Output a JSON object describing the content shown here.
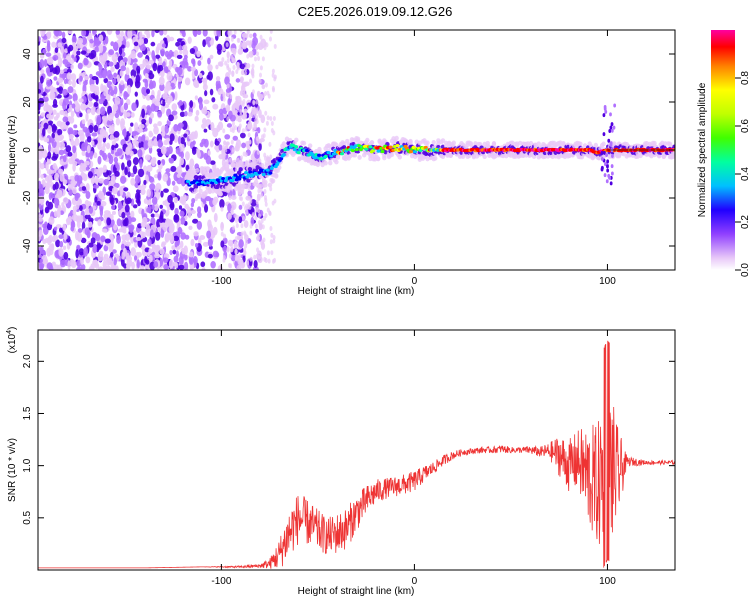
{
  "title": "C2E5.2026.019.09.12.G26",
  "chart_data": [
    {
      "type": "heatmap",
      "title": "C2E5.2026.019.09.12.G26",
      "xlabel": "Height of straight line (km)",
      "ylabel": "Frequency (Hz)",
      "xlim": [
        -195,
        135
      ],
      "ylim": [
        -50,
        50
      ],
      "xticks": [
        -100,
        0,
        100
      ],
      "xtick_labels": [
        "-100",
        "0",
        "100"
      ],
      "yticks": [
        -40,
        -20,
        0,
        20,
        40
      ],
      "ytick_labels": [
        "-40",
        "-20",
        "0",
        "20",
        "40"
      ],
      "colorbar": {
        "label": "Normalized spectral amplitude",
        "range": [
          0,
          1
        ],
        "ticks": [
          0.0,
          0.2,
          0.4,
          0.6,
          0.8
        ],
        "tick_labels": [
          "0.0",
          "0.2",
          "0.4",
          "0.6",
          "0.8"
        ]
      },
      "ridge": {
        "x": [
          -115,
          -105,
          -95,
          -85,
          -75,
          -70,
          -65,
          -60,
          -50,
          -40,
          -30,
          -20,
          -10,
          0,
          10,
          20,
          40,
          60,
          80,
          90,
          95,
          100,
          110,
          135
        ],
        "y": [
          -14,
          -13,
          -12,
          -10,
          -9,
          -4,
          2,
          0,
          -3,
          -1,
          1,
          0,
          1,
          0,
          0,
          0,
          0,
          0,
          0,
          0,
          -1,
          0,
          0,
          0
        ]
      },
      "colors": [
        "#ffffff",
        "#e8c8f8",
        "#b070ff",
        "#5000e0",
        "#0000ff",
        "#00c0ff",
        "#00ffa0",
        "#40ff00",
        "#c0ff00",
        "#ffff00",
        "#ff8000",
        "#ff0000",
        "#ff00a0"
      ]
    },
    {
      "type": "line",
      "xlabel": "Height of straight line (km)",
      "ylabel": "SNR (10 * v/v)",
      "scale_label": "(x10",
      "scale_exp": "4",
      "xlim": [
        -195,
        135
      ],
      "ylim": [
        0,
        2.3
      ],
      "xticks": [
        -100,
        0,
        100
      ],
      "xtick_labels": [
        "-100",
        "0",
        "100"
      ],
      "yticks": [
        0.5,
        1.0,
        1.5,
        2.0
      ],
      "ytick_labels": [
        "0.5",
        "1.0",
        "1.5",
        "2.0"
      ],
      "series": [
        {
          "name": "SNR",
          "color": "#ee3333",
          "x": [
            -195,
            -170,
            -140,
            -110,
            -90,
            -80,
            -75,
            -70,
            -65,
            -60,
            -55,
            -50,
            -45,
            -40,
            -35,
            -30,
            -25,
            -20,
            -15,
            -10,
            -5,
            0,
            5,
            10,
            15,
            20,
            25,
            30,
            35,
            40,
            45,
            50,
            55,
            60,
            65,
            70,
            75,
            80,
            85,
            90,
            95,
            100,
            105,
            110,
            120,
            135
          ],
          "y": [
            0.02,
            0.02,
            0.02,
            0.03,
            0.03,
            0.04,
            0.06,
            0.15,
            0.35,
            0.5,
            0.45,
            0.38,
            0.32,
            0.35,
            0.4,
            0.55,
            0.66,
            0.75,
            0.78,
            0.8,
            0.82,
            0.85,
            0.92,
            0.98,
            1.05,
            1.1,
            1.13,
            1.14,
            1.15,
            1.15,
            1.16,
            1.15,
            1.15,
            1.15,
            1.13,
            1.14,
            1.1,
            1.0,
            1.05,
            0.9,
            0.8,
            1.0,
            0.9,
            1.04,
            1.03,
            1.03
          ],
          "noise_amplitude": [
            0,
            0,
            0,
            0,
            0.01,
            0.02,
            0.05,
            0.15,
            0.25,
            0.25,
            0.22,
            0.2,
            0.18,
            0.2,
            0.2,
            0.18,
            0.15,
            0.12,
            0.1,
            0.1,
            0.1,
            0.1,
            0.08,
            0.06,
            0.05,
            0.04,
            0.03,
            0.03,
            0.03,
            0.03,
            0.04,
            0.03,
            0.03,
            0.04,
            0.05,
            0.08,
            0.2,
            0.25,
            0.3,
            0.5,
            0.6,
            0.9,
            0.5,
            0.05,
            0.02,
            0.02
          ]
        }
      ]
    }
  ]
}
